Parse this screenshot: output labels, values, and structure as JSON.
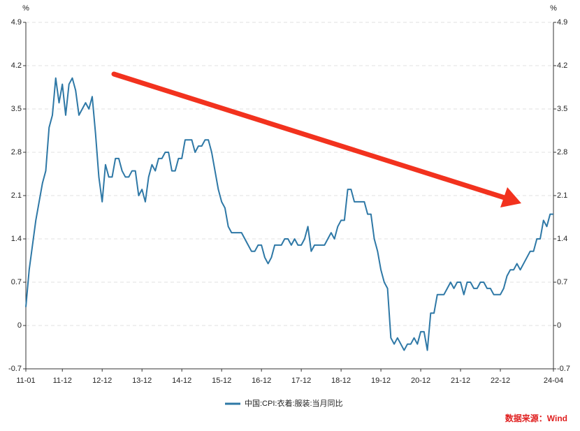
{
  "chart_data": {
    "type": "line",
    "y_unit": "%",
    "y2_unit": "%",
    "source": "数据来源：Wind",
    "categories": [
      "11-01",
      null,
      null,
      null,
      null,
      null,
      null,
      null,
      null,
      null,
      null,
      "11-12",
      null,
      null,
      null,
      null,
      null,
      null,
      null,
      null,
      null,
      null,
      null,
      "12-12",
      null,
      null,
      null,
      null,
      null,
      null,
      null,
      null,
      null,
      null,
      null,
      "13-12",
      null,
      null,
      null,
      null,
      null,
      null,
      null,
      null,
      null,
      null,
      null,
      "14-12",
      null,
      null,
      null,
      null,
      null,
      null,
      null,
      null,
      null,
      null,
      null,
      "15-12",
      null,
      null,
      null,
      null,
      null,
      null,
      null,
      null,
      null,
      null,
      null,
      "16-12",
      null,
      null,
      null,
      null,
      null,
      null,
      null,
      null,
      null,
      null,
      null,
      "17-12",
      null,
      null,
      null,
      null,
      null,
      null,
      null,
      null,
      null,
      null,
      null,
      "18-12",
      null,
      null,
      null,
      null,
      null,
      null,
      null,
      null,
      null,
      null,
      null,
      "19-12",
      null,
      null,
      null,
      null,
      null,
      null,
      null,
      null,
      null,
      null,
      null,
      "20-12",
      null,
      null,
      null,
      null,
      null,
      null,
      null,
      null,
      null,
      null,
      null,
      "21-12",
      null,
      null,
      null,
      null,
      null,
      null,
      null,
      null,
      null,
      null,
      null,
      "22-12",
      null,
      null,
      null,
      null,
      null,
      null,
      null,
      null,
      null,
      null,
      null,
      null,
      null,
      null,
      null,
      "24-04"
    ],
    "series": [
      {
        "name": "中国:CPI:衣着:服装:当月同比",
        "color": "#2e78a6",
        "values": [
          0.3,
          0.9,
          1.3,
          1.7,
          2.0,
          2.3,
          2.5,
          3.2,
          3.4,
          4.0,
          3.6,
          3.9,
          3.4,
          3.9,
          4.0,
          3.8,
          3.4,
          3.5,
          3.6,
          3.5,
          3.7,
          3.1,
          2.4,
          2.0,
          2.6,
          2.4,
          2.4,
          2.7,
          2.7,
          2.5,
          2.4,
          2.4,
          2.5,
          2.5,
          2.1,
          2.2,
          2.0,
          2.4,
          2.6,
          2.5,
          2.7,
          2.7,
          2.8,
          2.8,
          2.5,
          2.5,
          2.7,
          2.7,
          3.0,
          3.0,
          3.0,
          2.8,
          2.9,
          2.9,
          3.0,
          3.0,
          2.8,
          2.5,
          2.2,
          2.0,
          1.9,
          1.6,
          1.5,
          1.5,
          1.5,
          1.5,
          1.4,
          1.3,
          1.2,
          1.2,
          1.3,
          1.3,
          1.1,
          1.0,
          1.1,
          1.3,
          1.3,
          1.3,
          1.4,
          1.4,
          1.3,
          1.4,
          1.3,
          1.3,
          1.4,
          1.6,
          1.2,
          1.3,
          1.3,
          1.3,
          1.3,
          1.4,
          1.5,
          1.4,
          1.6,
          1.7,
          1.7,
          2.2,
          2.2,
          2.0,
          2.0,
          2.0,
          2.0,
          1.8,
          1.8,
          1.4,
          1.2,
          0.9,
          0.7,
          0.6,
          -0.2,
          -0.3,
          -0.2,
          -0.3,
          -0.4,
          -0.3,
          -0.3,
          -0.2,
          -0.3,
          -0.1,
          -0.1,
          -0.4,
          0.2,
          0.2,
          0.5,
          0.5,
          0.5,
          0.6,
          0.7,
          0.6,
          0.7,
          0.7,
          0.5,
          0.7,
          0.7,
          0.6,
          0.6,
          0.7,
          0.7,
          0.6,
          0.6,
          0.5,
          0.5,
          0.5,
          0.6,
          0.8,
          0.9,
          0.9,
          1.0,
          0.9,
          1.0,
          1.1,
          1.2,
          1.2,
          1.4,
          1.4,
          1.7,
          1.6,
          1.8,
          1.8
        ]
      }
    ],
    "ylim": [
      -0.7,
      4.9
    ],
    "yticks": [
      -0.7,
      0,
      0.7,
      1.4,
      2.1,
      2.8,
      3.5,
      4.2,
      4.9
    ],
    "y2lim": [
      -0.7,
      4.9
    ],
    "y2ticks": [
      -0.7,
      0,
      0.7,
      1.4,
      2.1,
      2.8,
      3.5,
      4.2,
      4.9
    ],
    "grid": true,
    "legend": "bottom"
  }
}
